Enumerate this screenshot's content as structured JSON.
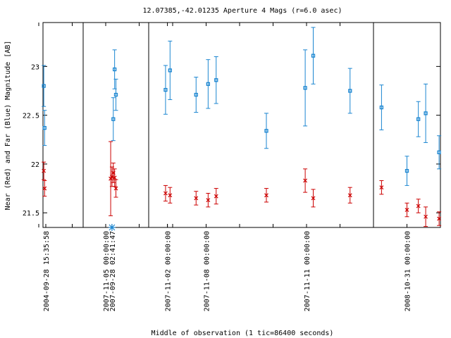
{
  "chart_data": {
    "type": "scatter",
    "title": "12.07385,-42.01235   Aperture 4 Mags (r=6.0 asec)",
    "xlabel": "Middle of observation (1 tic=86400 seconds)",
    "ylabel": "Near (Red) and Far (Blue) Magnitude [AB]",
    "y_inverted": true,
    "ylim": [
      23.45,
      21.35
    ],
    "yticks": [
      21.5,
      22,
      22.5,
      23
    ],
    "ytick_labels": [
      "21.5",
      "22",
      "22.5",
      "23"
    ],
    "panels": [
      {
        "start": 0.0,
        "end": 1.0
      },
      {
        "start": 1.0,
        "end": 2.0
      },
      {
        "start": 2.0,
        "end": 8.0,
        "tick_spacing": 0.5,
        "labels": [
          {
            "x": 2.5,
            "text": "2007-11-02 00:00:00"
          },
          {
            "x": 4.0,
            "text": "2007-11-05 00:00:00"
          },
          {
            "x": 5.5,
            "text": "2007-11-08 00:00:00"
          },
          {
            "x": 7.0,
            "text": "2007-11-11 00:00:00"
          }
        ]
      },
      {
        "start": 8.0,
        "end": 9.0
      }
    ],
    "panel_labels": [
      {
        "x": 0.07,
        "text": "2004-09-28 15:35:58"
      },
      {
        "x": 1.44,
        "text": "2007-09-28 02:41:47"
      },
      {
        "x": 8.5,
        "text": "2008-10-31 00:00:00"
      }
    ],
    "x_unit_note": "x is a position along the broken time axis; tick labels give the dates",
    "series": [
      {
        "name": "Near (Red)",
        "color": "#cc0000",
        "marker": "x",
        "points": [
          {
            "x": 0.02,
            "y": 21.93,
            "err": 0.09
          },
          {
            "x": 0.04,
            "y": 21.75,
            "err": 0.08
          },
          {
            "x": 1.42,
            "y": 21.85,
            "err": 0.38
          },
          {
            "x": 1.44,
            "y": 21.87,
            "err": 0.1
          },
          {
            "x": 1.46,
            "y": 21.91,
            "err": 0.1
          },
          {
            "x": 1.48,
            "y": 21.86,
            "err": 0.09
          },
          {
            "x": 1.5,
            "y": 21.75,
            "err": 0.09
          },
          {
            "x": 2.45,
            "y": 21.7,
            "err": 0.08
          },
          {
            "x": 2.57,
            "y": 21.68,
            "err": 0.08
          },
          {
            "x": 5.35,
            "y": 21.65,
            "err": 0.07
          },
          {
            "x": 5.53,
            "y": 21.63,
            "err": 0.07
          },
          {
            "x": 5.65,
            "y": 21.67,
            "err": 0.08
          },
          {
            "x": 6.4,
            "y": 21.68,
            "err": 0.07
          },
          {
            "x": 6.98,
            "y": 21.83,
            "err": 0.12
          },
          {
            "x": 7.1,
            "y": 21.65,
            "err": 0.09
          },
          {
            "x": 7.65,
            "y": 21.68,
            "err": 0.08
          },
          {
            "x": 8.12,
            "y": 21.76,
            "err": 0.07
          },
          {
            "x": 8.5,
            "y": 21.53,
            "err": 0.07
          },
          {
            "x": 8.67,
            "y": 21.57,
            "err": 0.07
          },
          {
            "x": 8.78,
            "y": 21.46,
            "err": 0.1
          },
          {
            "x": 8.98,
            "y": 21.44,
            "err": 0.07
          }
        ]
      },
      {
        "name": "Far (Blue)",
        "color": "#1b86d1",
        "marker": "square",
        "points": [
          {
            "x": 0.02,
            "y": 22.8,
            "err": 0.21
          },
          {
            "x": 0.04,
            "y": 22.37,
            "err": 0.18
          },
          {
            "x": 1.46,
            "y": 22.46,
            "err": 0.22
          },
          {
            "x": 1.48,
            "y": 22.97,
            "err": 0.2
          },
          {
            "x": 1.5,
            "y": 22.71,
            "err": 0.16
          },
          {
            "x": 2.45,
            "y": 22.76,
            "err": 0.25
          },
          {
            "x": 2.57,
            "y": 22.96,
            "err": 0.3
          },
          {
            "x": 5.35,
            "y": 22.71,
            "err": 0.18
          },
          {
            "x": 5.53,
            "y": 22.82,
            "err": 0.25
          },
          {
            "x": 5.65,
            "y": 22.86,
            "err": 0.24
          },
          {
            "x": 6.4,
            "y": 22.34,
            "err": 0.18
          },
          {
            "x": 6.98,
            "y": 22.78,
            "err": 0.39
          },
          {
            "x": 7.1,
            "y": 23.11,
            "err": 0.29
          },
          {
            "x": 7.65,
            "y": 22.75,
            "err": 0.23
          },
          {
            "x": 8.12,
            "y": 22.58,
            "err": 0.23
          },
          {
            "x": 8.5,
            "y": 21.93,
            "err": 0.15
          },
          {
            "x": 8.67,
            "y": 22.46,
            "err": 0.18
          },
          {
            "x": 8.78,
            "y": 22.52,
            "err": 0.3
          },
          {
            "x": 8.98,
            "y": 22.12,
            "err": 0.17
          }
        ]
      }
    ],
    "special_markers": [
      {
        "x": 1.44,
        "marker": "asterisk",
        "color": "#1b86d1"
      }
    ]
  }
}
